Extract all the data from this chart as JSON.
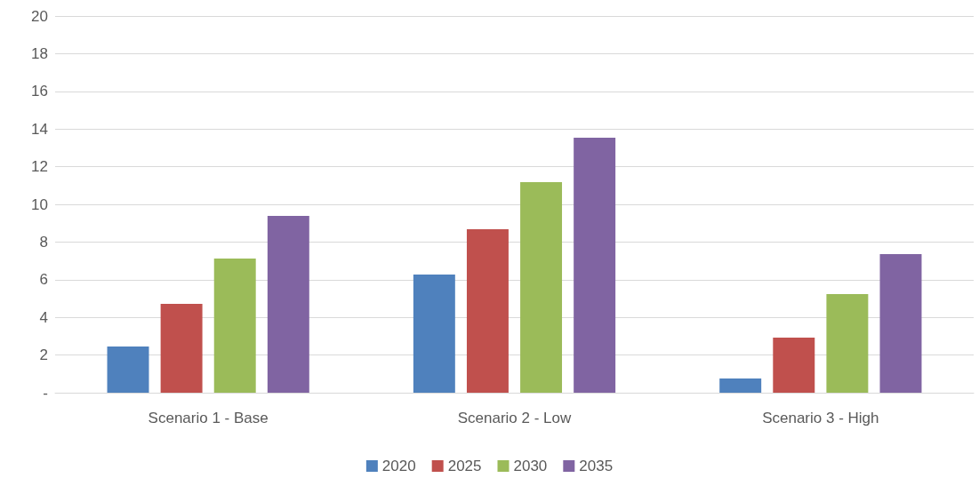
{
  "chart_data": {
    "type": "bar",
    "categories": [
      "Scenario 1 - Base",
      "Scenario 2 - Low",
      "Scenario 3 - High"
    ],
    "series": [
      {
        "name": "2020",
        "color": "#4f81bd",
        "values": [
          2.45,
          6.27,
          0.75
        ]
      },
      {
        "name": "2025",
        "color": "#c0504d",
        "values": [
          4.72,
          8.68,
          2.92
        ]
      },
      {
        "name": "2030",
        "color": "#9bbb59",
        "values": [
          7.12,
          11.18,
          5.24
        ]
      },
      {
        "name": "2035",
        "color": "#8064a2",
        "values": [
          9.39,
          13.54,
          7.36
        ]
      }
    ],
    "ylim": [
      0,
      20
    ],
    "yticks": [
      {
        "value": 0,
        "label": "-"
      },
      2,
      4,
      6,
      8,
      10,
      12,
      14,
      16,
      18,
      20
    ],
    "grid": "y",
    "legend": "bottom"
  }
}
